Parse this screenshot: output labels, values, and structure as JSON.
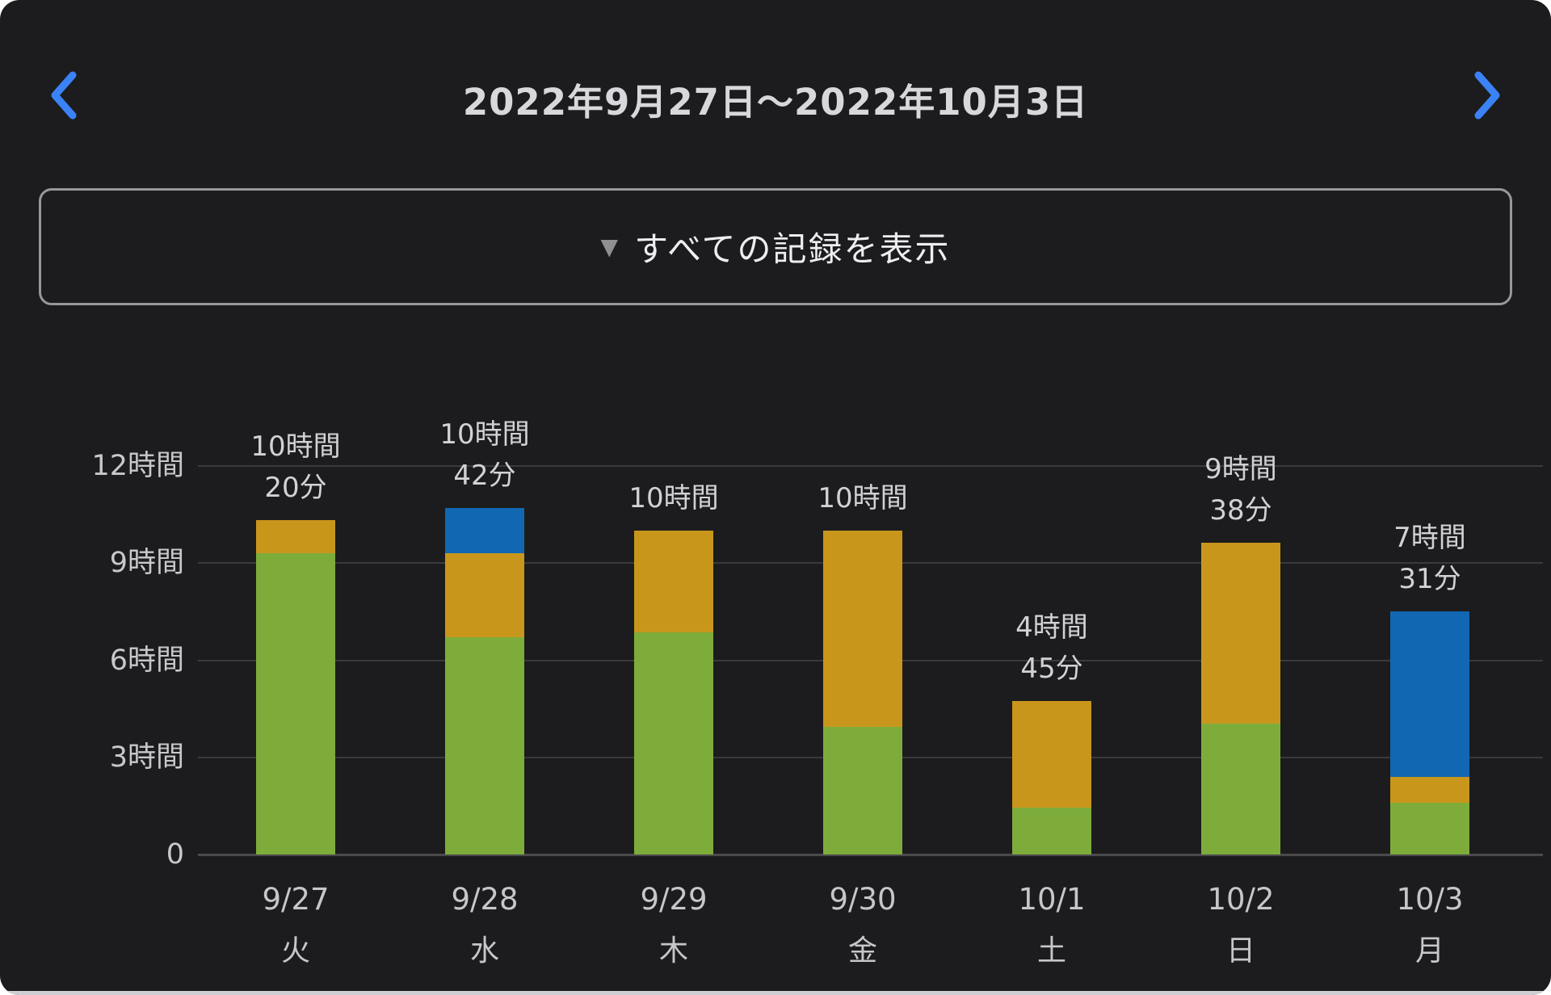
{
  "header": {
    "title": "2022年9月27日〜2022年10月3日",
    "prev_icon": "chevron-left",
    "next_icon": "chevron-right",
    "accent_color": "#3b82f7"
  },
  "toolbar": {
    "dropdown_icon": "▼",
    "show_all_label": "すべての記録を表示"
  },
  "chart_data": {
    "type": "bar",
    "stacked": true,
    "title": "",
    "xlabel": "",
    "ylabel": "",
    "ylim": [
      0,
      12
    ],
    "grid": true,
    "categories": [
      "9/27",
      "9/28",
      "9/29",
      "9/30",
      "10/1",
      "10/2",
      "10/3"
    ],
    "weekday_labels": [
      "火",
      "水",
      "木",
      "金",
      "土",
      "日",
      "月"
    ],
    "y_ticks": [
      {
        "value": 0,
        "label": "0"
      },
      {
        "value": 3,
        "label": "3時間"
      },
      {
        "value": 6,
        "label": "6時間"
      },
      {
        "value": 9,
        "label": "9時間"
      },
      {
        "value": 12,
        "label": "12時間"
      }
    ],
    "series": [
      {
        "name": "green-segment",
        "color": "#7eac3b",
        "values": [
          9.3,
          6.7,
          6.85,
          3.95,
          1.45,
          4.05,
          1.6
        ]
      },
      {
        "name": "orange-segment",
        "color": "#c9961c",
        "values": [
          1.03,
          2.6,
          3.15,
          6.05,
          3.3,
          5.58,
          0.8
        ]
      },
      {
        "name": "blue-segment",
        "color": "#1167b1",
        "values": [
          0,
          1.4,
          0,
          0,
          0,
          0,
          5.12
        ]
      }
    ],
    "bar_total_labels": [
      [
        "10時間",
        "20分"
      ],
      [
        "10時間",
        "42分"
      ],
      [
        "10時間"
      ],
      [
        "10時間"
      ],
      [
        "4時間",
        "45分"
      ],
      [
        "9時間",
        "38分"
      ],
      [
        "7時間",
        "31分"
      ]
    ],
    "totals_minutes": [
      620,
      642,
      600,
      600,
      285,
      578,
      451
    ]
  },
  "colors": {
    "background": "#1c1c1e",
    "gridline": "#3a3a3c",
    "axis_text": "#c7c7cc",
    "title_text": "#d8d8dc",
    "accent_blue": "#3b82f7",
    "bar_green": "#7eac3b",
    "bar_orange": "#c9961c",
    "bar_blue": "#1167b1"
  }
}
